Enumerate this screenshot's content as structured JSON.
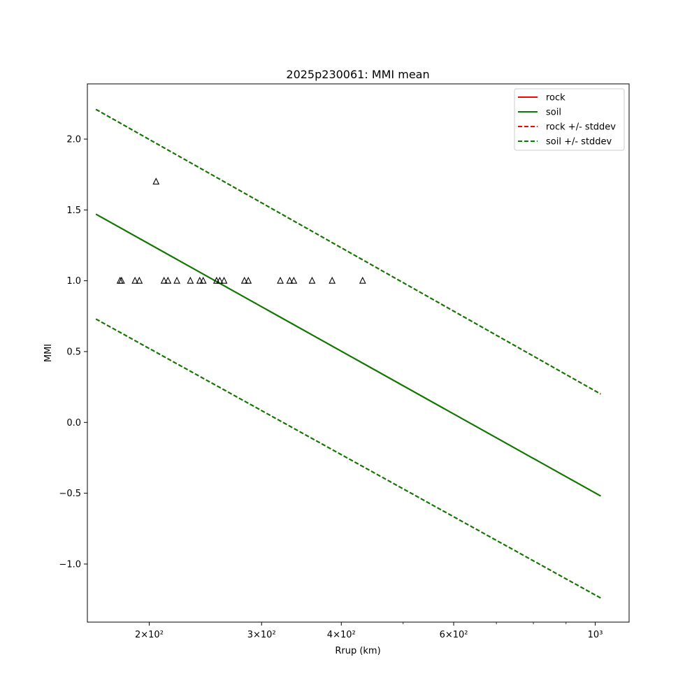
{
  "chart_data": {
    "type": "line",
    "title": "2025p230061: MMI mean",
    "xlabel": "Rrup (km)",
    "ylabel": "MMI",
    "xscale": "log",
    "xlim": [
      160,
      1130
    ],
    "ylim": [
      -1.41,
      2.39
    ],
    "grid": false,
    "legend_position": "top-right",
    "x_ticks": [
      {
        "value": 200,
        "label": "2×10²"
      },
      {
        "value": 300,
        "label": "3×10²"
      },
      {
        "value": 400,
        "label": "4×10²"
      },
      {
        "value": 600,
        "label": "6×10²"
      },
      {
        "value": 1000,
        "label": "10³"
      }
    ],
    "x_minor_ticks": [
      500,
      700,
      800,
      900
    ],
    "y_ticks": [
      {
        "value": -1.0,
        "label": "−1.0"
      },
      {
        "value": -0.5,
        "label": "−0.5"
      },
      {
        "value": 0.0,
        "label": "0.0"
      },
      {
        "value": 0.5,
        "label": "0.5"
      },
      {
        "value": 1.0,
        "label": "1.0"
      },
      {
        "value": 1.5,
        "label": "1.5"
      },
      {
        "value": 2.0,
        "label": "2.0"
      }
    ],
    "series": [
      {
        "name": "rock",
        "style": "solid",
        "color": "#ff0000",
        "x": [
          165,
          1020
        ],
        "y": [
          1.47,
          -0.52
        ]
      },
      {
        "name": "soil",
        "style": "solid",
        "color": "#008000",
        "x": [
          165,
          1020
        ],
        "y": [
          1.47,
          -0.52
        ]
      },
      {
        "name": "rock +/- stddev",
        "style": "dashed",
        "color": "#ff0000",
        "x": [
          165,
          1020
        ],
        "y": [
          2.21,
          0.2
        ]
      },
      {
        "name": "soil +/- stddev",
        "style": "dashed",
        "color": "#008000",
        "x": [
          165,
          1020
        ],
        "y": [
          2.21,
          0.2
        ]
      }
    ],
    "hidden_bands": [
      {
        "color": "#ff0000",
        "style": "dashed",
        "x": [
          165,
          1020
        ],
        "y": [
          0.73,
          -1.24
        ]
      },
      {
        "color": "#008000",
        "style": "dashed",
        "x": [
          165,
          1020
        ],
        "y": [
          0.73,
          -1.24
        ]
      }
    ],
    "observations": {
      "marker": "triangle-open",
      "color": "#000000",
      "points": [
        {
          "x": 180,
          "y": 1.0
        },
        {
          "x": 181,
          "y": 1.0
        },
        {
          "x": 190,
          "y": 1.0
        },
        {
          "x": 193,
          "y": 1.0
        },
        {
          "x": 205,
          "y": 1.7
        },
        {
          "x": 211,
          "y": 1.0
        },
        {
          "x": 214,
          "y": 1.0
        },
        {
          "x": 221,
          "y": 1.0
        },
        {
          "x": 232,
          "y": 1.0
        },
        {
          "x": 240,
          "y": 1.0
        },
        {
          "x": 243,
          "y": 1.0
        },
        {
          "x": 255,
          "y": 1.0
        },
        {
          "x": 258,
          "y": 1.0
        },
        {
          "x": 262,
          "y": 1.0
        },
        {
          "x": 282,
          "y": 1.0
        },
        {
          "x": 286,
          "y": 1.0
        },
        {
          "x": 321,
          "y": 1.0
        },
        {
          "x": 332,
          "y": 1.0
        },
        {
          "x": 337,
          "y": 1.0
        },
        {
          "x": 360,
          "y": 1.0
        },
        {
          "x": 387,
          "y": 1.0
        },
        {
          "x": 432,
          "y": 1.0
        }
      ]
    }
  }
}
